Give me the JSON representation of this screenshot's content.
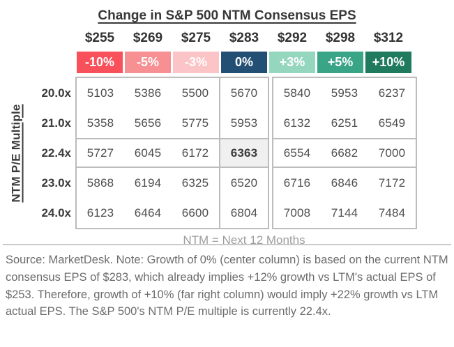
{
  "title": "Change in S&P 500 NTM Consensus EPS",
  "y_axis_label": "NTM P/E Multiple",
  "ntm_note": "NTM = Next 12 Months",
  "footer_note": "Source: MarketDesk. Note: Growth of 0% (center column) is based on the current NTM consensus EPS of $283, which already implies +12% growth vs LTM's actual EPS of $253. Therefore, growth of +10% (far right column) would imply +22% growth vs LTM actual EPS. The S&P 500's NTM P/E multiple is currently 22.4x.",
  "colors": {
    "border_gray": "#bcbcbc",
    "highlight_cell_bg": "#f0f0f0",
    "note_gray": "#9d9d9d",
    "footer_gray": "#6c6c6c",
    "text_dark": "#3a3a3a",
    "value_gray": "#4e4e50"
  },
  "chart_data": {
    "type": "table",
    "title": "Change in S&P 500 NTM Consensus EPS",
    "ylabel": "NTM P/E Multiple",
    "column_headers_eps": [
      "$255",
      "$269",
      "$275",
      "$283",
      "$292",
      "$298",
      "$312"
    ],
    "column_headers_growth": [
      "-10%",
      "-5%",
      "-3%",
      "0%",
      "+3%",
      "+5%",
      "+10%"
    ],
    "growth_colors": [
      "#f9515b",
      "#f79093",
      "#fbc4c6",
      "#234f75",
      "#95d6bf",
      "#3aa487",
      "#1f7a5e"
    ],
    "row_headers_pe": [
      "20.0x",
      "21.0x",
      "22.4x",
      "23.0x",
      "24.0x"
    ],
    "rows": [
      [
        5103,
        5386,
        5500,
        5670,
        5840,
        5953,
        6237
      ],
      [
        5358,
        5656,
        5775,
        5953,
        6132,
        6251,
        6549
      ],
      [
        5727,
        6045,
        6172,
        6363,
        6554,
        6682,
        7000
      ],
      [
        5868,
        6194,
        6325,
        6520,
        6716,
        6846,
        7172
      ],
      [
        6123,
        6464,
        6600,
        6804,
        7008,
        7144,
        7484
      ]
    ],
    "highlighted_row": "22.4x",
    "highlighted_cell_value": 6363,
    "note": "NTM = Next 12 Months",
    "legend_position": "none",
    "grid": "partial"
  }
}
